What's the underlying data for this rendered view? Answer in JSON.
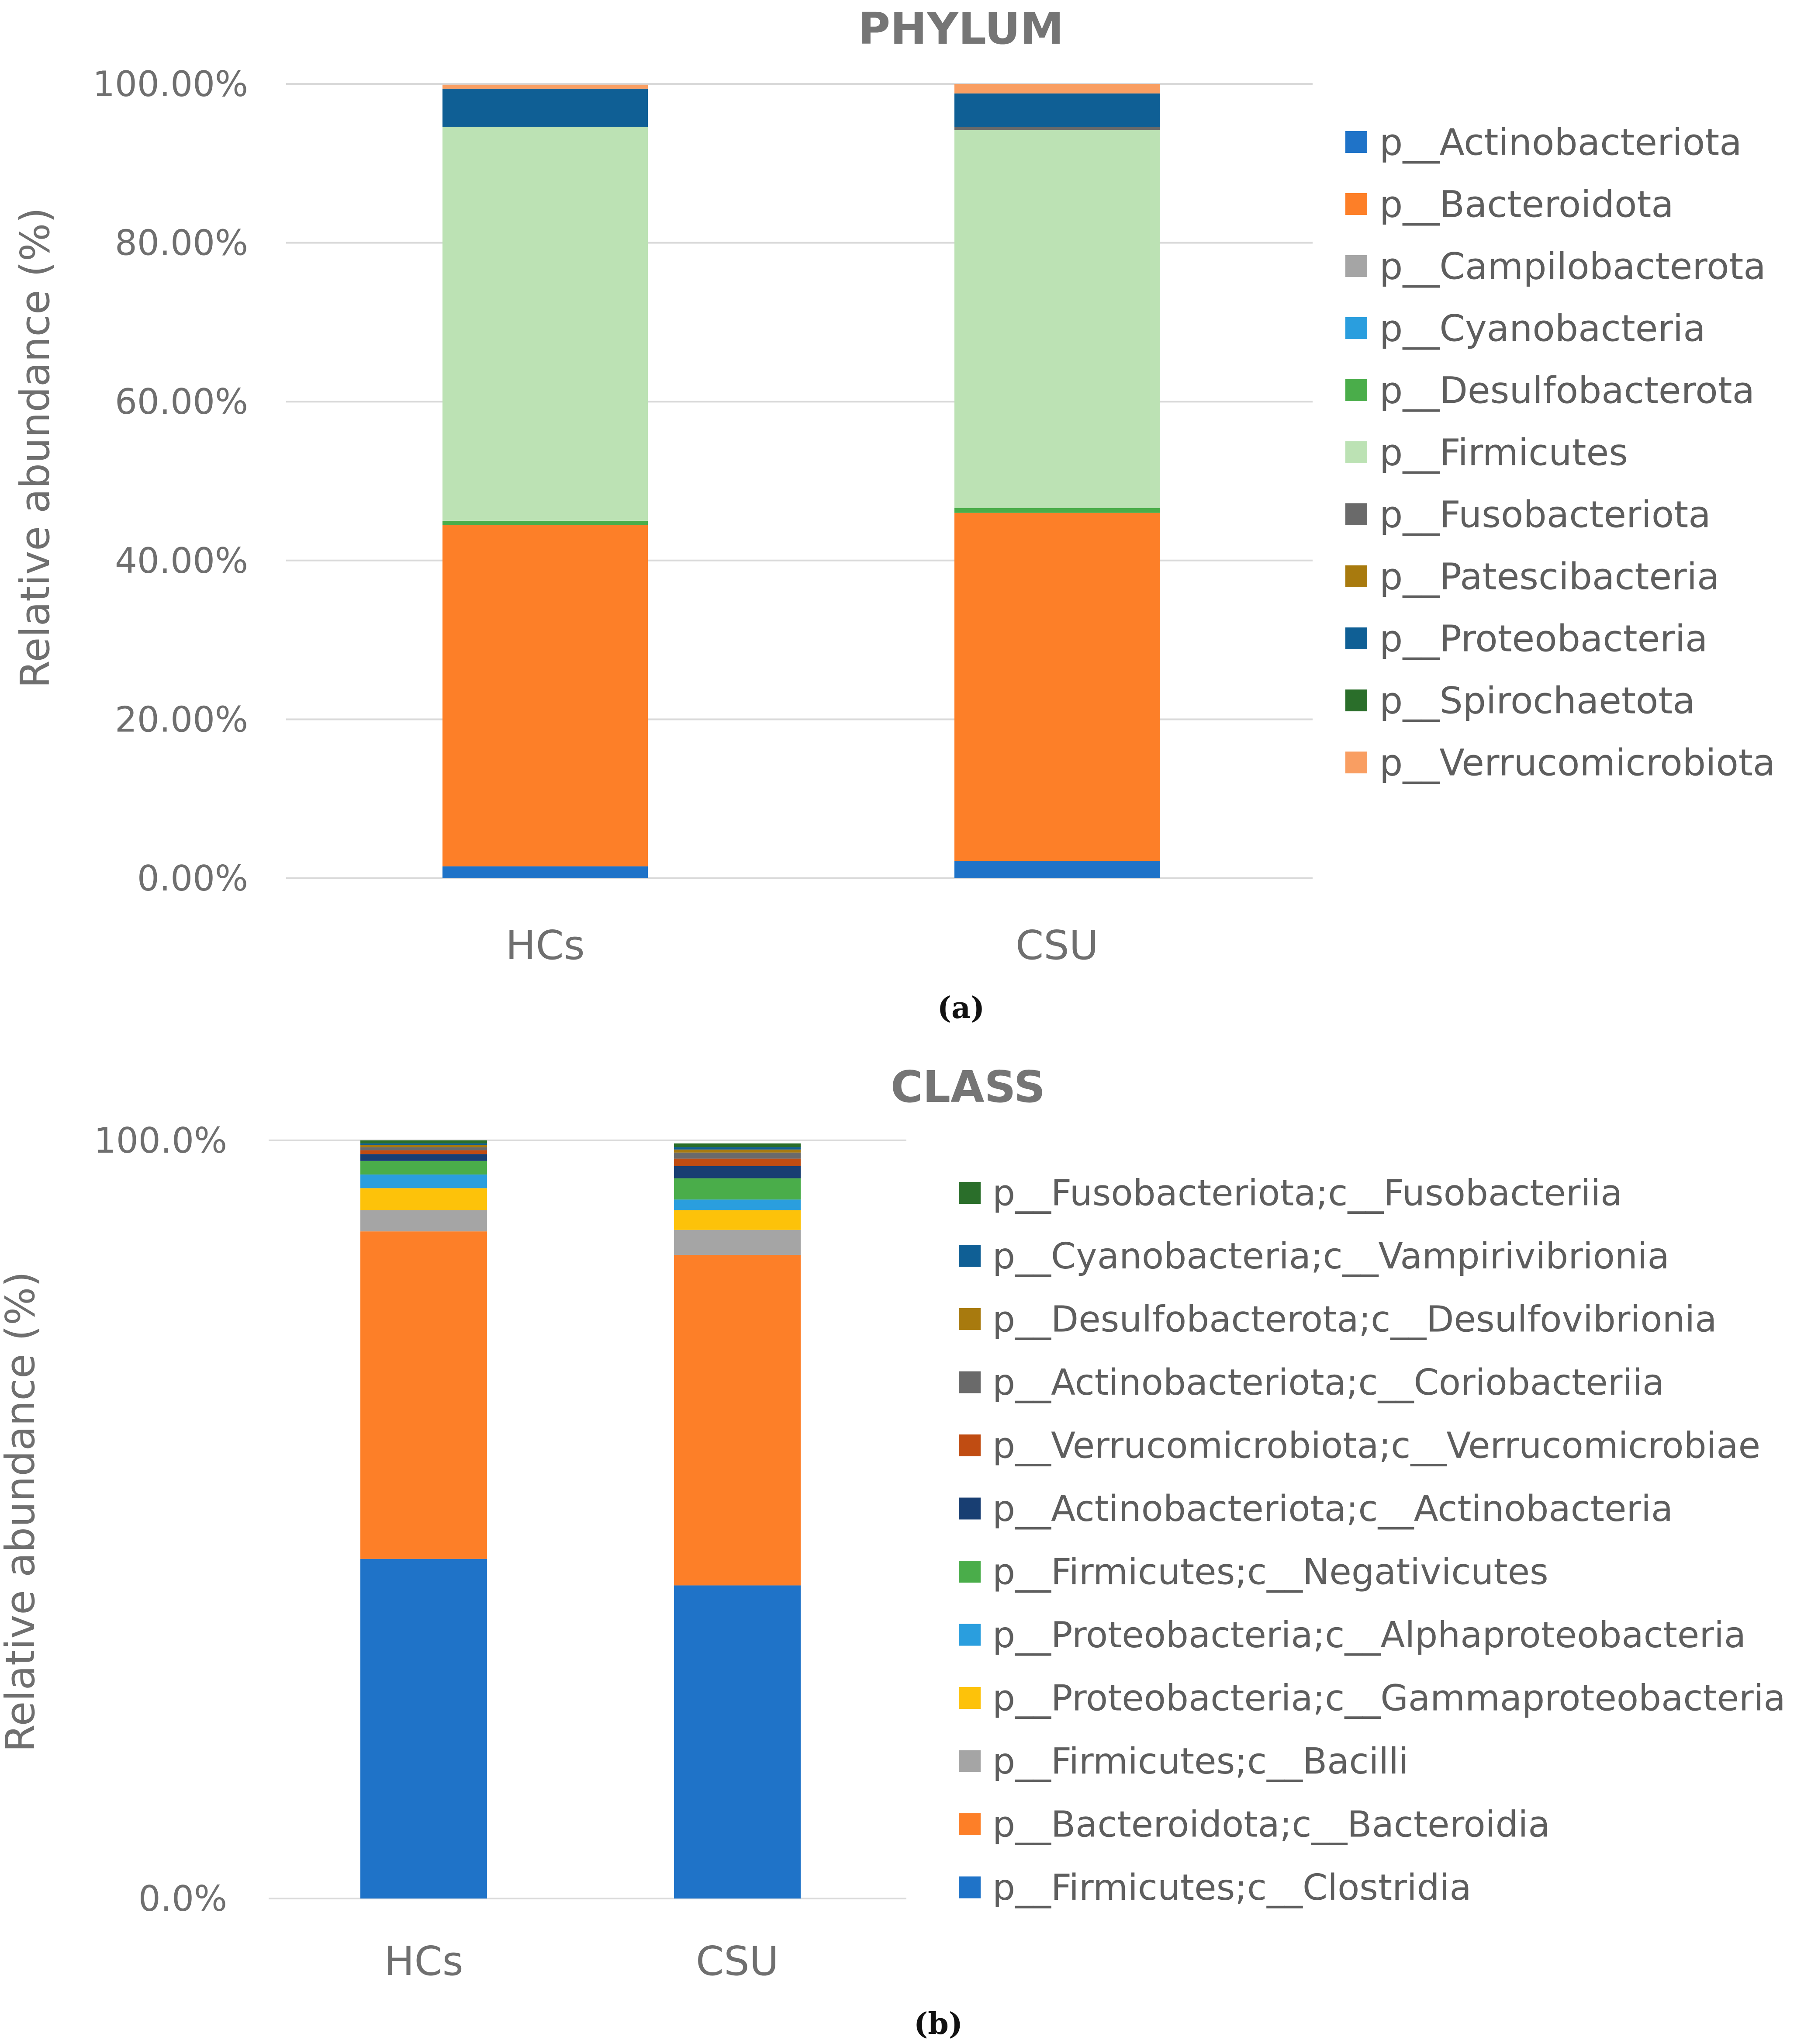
{
  "panels": [
    {
      "panel_label": "(a)",
      "chart_data": {
        "type": "bar",
        "stacked": true,
        "title": "PHYLUM",
        "xlabel": "",
        "ylabel": "Relative abundance (%)",
        "ylim": [
          0,
          100
        ],
        "yticks": [
          "0.00%",
          "20.00%",
          "40.00%",
          "60.00%",
          "80.00%",
          "100.00%"
        ],
        "ytick_values": [
          0,
          20,
          40,
          60,
          80,
          100
        ],
        "grid": true,
        "legend_placement": "right",
        "legend_order": "top-to-bottom",
        "categories": [
          "HCs",
          "CSU"
        ],
        "series": [
          {
            "name": "p__Actinobacteriota",
            "color": "#1f73c8",
            "values": [
              1.5,
              2.2
            ]
          },
          {
            "name": "p__Bacteroidota",
            "color": "#fd7f28",
            "values": [
              43.0,
              43.8
            ]
          },
          {
            "name": "p__Campilobacterota",
            "color": "#a5a5a5",
            "values": [
              0.0,
              0.0
            ]
          },
          {
            "name": "p__Cyanobacteria",
            "color": "#2a9ede",
            "values": [
              0.0,
              0.0
            ]
          },
          {
            "name": "p__Desulfobacterota",
            "color": "#4aad4a",
            "values": [
              0.5,
              0.6
            ]
          },
          {
            "name": "p__Firmicutes",
            "color": "#bce2b4",
            "values": [
              49.6,
              47.6
            ]
          },
          {
            "name": "p__Fusobacteriota",
            "color": "#6a6a6a",
            "values": [
              0.0,
              0.4
            ]
          },
          {
            "name": "p__Patescibacteria",
            "color": "#a87a0e",
            "values": [
              0.0,
              0.0
            ]
          },
          {
            "name": "p__Proteobacteria",
            "color": "#0f5f95",
            "values": [
              4.8,
              4.2
            ]
          },
          {
            "name": "p__Spirochaetota",
            "color": "#2a6e2a",
            "values": [
              0.0,
              0.0
            ]
          },
          {
            "name": "p__Verrucomicrobiota",
            "color": "#f99e62",
            "values": [
              0.5,
              1.2
            ]
          }
        ]
      }
    },
    {
      "panel_label": "(b)",
      "chart_data": {
        "type": "bar",
        "stacked": true,
        "title": "CLASS",
        "xlabel": "",
        "ylabel": "Relative abundance (%)",
        "ylim": [
          0,
          100
        ],
        "yticks": [
          "0.0%",
          "100.0%"
        ],
        "ytick_values": [
          0,
          100
        ],
        "grid": true,
        "legend_placement": "right",
        "legend_order": "top-to-bottom",
        "categories": [
          "HCs",
          "CSU"
        ],
        "series": [
          {
            "name": "p__Firmicutes;c__Clostridia",
            "color": "#1f73c8",
            "values": [
              44.8,
              41.3
            ]
          },
          {
            "name": "p__Bacteroidota;c__Bacteroidia",
            "color": "#fd7f28",
            "values": [
              43.2,
              43.6
            ]
          },
          {
            "name": "p__Firmicutes;c__Bacilli",
            "color": "#a5a5a5",
            "values": [
              2.8,
              3.3
            ]
          },
          {
            "name": "p__Proteobacteria;c__Gammaproteobacteria",
            "color": "#fdc20a",
            "values": [
              2.9,
              2.6
            ]
          },
          {
            "name": "p__Proteobacteria;c__Alphaproteobacteria",
            "color": "#2a9ede",
            "values": [
              1.8,
              1.4
            ]
          },
          {
            "name": "p__Firmicutes;c__Negativicutes",
            "color": "#4aad4a",
            "values": [
              1.8,
              2.8
            ]
          },
          {
            "name": "p__Actinobacteriota;c__Actinobacteria",
            "color": "#183e72",
            "values": [
              0.9,
              1.6
            ]
          },
          {
            "name": "p__Verrucomicrobiota;c__Verrucomicrobiae",
            "color": "#c04c12",
            "values": [
              0.5,
              1.0
            ]
          },
          {
            "name": "p__Actinobacteriota;c__Coriobacteriia",
            "color": "#6a6a6a",
            "values": [
              0.4,
              0.8
            ]
          },
          {
            "name": "p__Desulfobacterota;c__Desulfovibrionia",
            "color": "#a87a0e",
            "values": [
              0.3,
              0.4
            ]
          },
          {
            "name": "p__Cyanobacteria;c__Vampirivibrionia",
            "color": "#0f5f95",
            "values": [
              0.2,
              0.3
            ]
          },
          {
            "name": "p__Fusobacteriota;c__Fusobacteriia",
            "color": "#2a6e2a",
            "values": [
              0.4,
              0.5
            ]
          }
        ]
      }
    }
  ]
}
